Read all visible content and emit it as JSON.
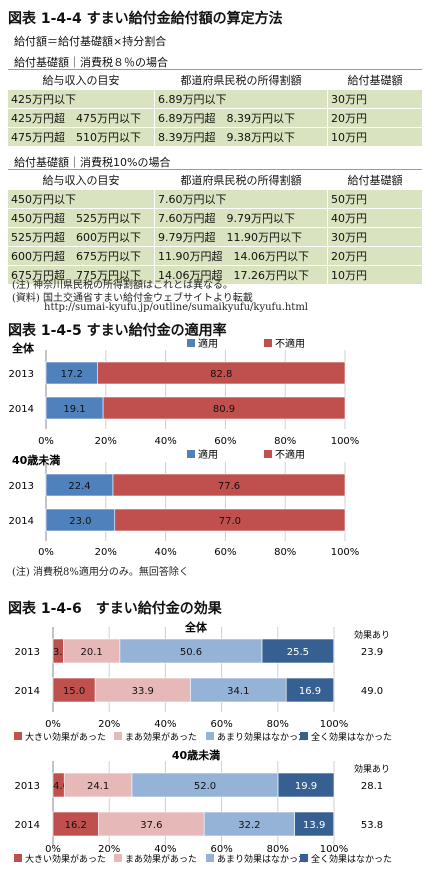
{
  "section1": {
    "title": "図表 1-4-4 すまい給付金給付額の算定方法",
    "formula": "給付額＝給付基礎額×持分割合",
    "table8": {
      "caption": "給付基礎額｜消費税８％の場合",
      "headers": [
        "給与収入の目安",
        "都道府県民税の所得割額",
        "給付基礎額"
      ],
      "rows": [
        [
          "425万円以下",
          "6.89万円以下",
          "30万円"
        ],
        [
          "425万円超　475万円以下",
          "6.89万円超　8.39万円以下",
          "20万円"
        ],
        [
          "475万円超　510万円以下",
          "8.39万円超　9.38万円以下",
          "10万円"
        ]
      ]
    },
    "table10": {
      "caption": "給付基礎額｜消費税10%の場合",
      "headers": [
        "給与収入の目安",
        "都道府県民税の所得割額",
        "給付基礎額"
      ],
      "rows": [
        [
          "450万円以下",
          "7.60万円以下",
          "50万円"
        ],
        [
          "450万円超　525万円以下",
          "7.60万円超　9.79万円以下",
          "40万円"
        ],
        [
          "525万円超　600万円以下",
          "9.79万円超　11.90万円以下",
          "30万円"
        ],
        [
          "600万円超　675万円以下",
          "11.90万円超　14.06万円以下",
          "20万円"
        ],
        [
          "675万円超　775万円以下",
          "14.06万円超　17.26万円以下",
          "10万円"
        ]
      ]
    },
    "notes": [
      "(注) 神奈川県民税の所得割額はこれとは異なる。",
      "(資料) 国土交通省すまい給付金ウェブサイトより転載",
      "http://sumai-kyufu.jp/outline/sumaikyufu/kyufu.html"
    ]
  },
  "section2": {
    "title": "図表 1-4-5 すまい給付金の適用率",
    "note": "(注) 消費税8%適用分のみ。無回答除く"
  },
  "section3": {
    "title": "図表 1-4-6　すまい給付金の効果"
  },
  "chart_data": [
    {
      "type": "bar",
      "orientation": "horizontal",
      "stacked": "percent",
      "title": "全体",
      "categories": [
        "2013",
        "2014"
      ],
      "series": [
        {
          "name": "適用",
          "color": "#4f81bd",
          "values": [
            17.2,
            19.1
          ]
        },
        {
          "name": "不適用",
          "color": "#c0504d",
          "values": [
            82.8,
            80.9
          ]
        }
      ],
      "xlim": [
        0,
        100
      ],
      "ticks": [
        "0%",
        "20%",
        "40%",
        "60%",
        "80%",
        "100%"
      ],
      "legend": "top"
    },
    {
      "type": "bar",
      "orientation": "horizontal",
      "stacked": "percent",
      "title": "40歳未満",
      "categories": [
        "2013",
        "2014"
      ],
      "series": [
        {
          "name": "適用",
          "color": "#4f81bd",
          "values": [
            22.4,
            23.0
          ]
        },
        {
          "name": "不適用",
          "color": "#c0504d",
          "values": [
            77.6,
            77.0
          ]
        }
      ],
      "xlim": [
        0,
        100
      ],
      "ticks": [
        "0%",
        "20%",
        "40%",
        "60%",
        "80%",
        "100%"
      ],
      "legend": "top"
    },
    {
      "type": "bar",
      "orientation": "horizontal",
      "stacked": "percent",
      "title": "全体",
      "categories": [
        "2013",
        "2014"
      ],
      "series": [
        {
          "name": "大きい効果があった",
          "color": "#c0504d",
          "values": [
            3.7,
            15.0
          ]
        },
        {
          "name": "まあ効果があった",
          "color": "#e6b9b8",
          "values": [
            20.1,
            33.9
          ]
        },
        {
          "name": "あまり効果はなかった",
          "color": "#95b3d7",
          "values": [
            50.6,
            34.1
          ]
        },
        {
          "name": "全く効果はなかった",
          "color": "#366092",
          "values": [
            25.5,
            16.9
          ]
        }
      ],
      "extra_label": "効果あり",
      "extra_values": [
        "23.9",
        "49.0"
      ],
      "xlim": [
        0,
        100
      ],
      "ticks": [
        "0%",
        "20%",
        "40%",
        "60%",
        "80%",
        "100%"
      ],
      "legend": "bottom"
    },
    {
      "type": "bar",
      "orientation": "horizontal",
      "stacked": "percent",
      "title": "40歳未満",
      "categories": [
        "2013",
        "2014"
      ],
      "series": [
        {
          "name": "大きい効果があった",
          "color": "#c0504d",
          "values": [
            4.0,
            16.2
          ]
        },
        {
          "name": "まあ効果があった",
          "color": "#e6b9b8",
          "values": [
            24.1,
            37.6
          ]
        },
        {
          "name": "あまり効果はなかった",
          "color": "#95b3d7",
          "values": [
            52.0,
            32.2
          ]
        },
        {
          "name": "全く効果はなかった",
          "color": "#366092",
          "values": [
            19.9,
            13.9
          ]
        }
      ],
      "extra_label": "効果あり",
      "extra_values": [
        "28.1",
        "53.8"
      ],
      "xlim": [
        0,
        100
      ],
      "ticks": [
        "0%",
        "20%",
        "40%",
        "60%",
        "80%",
        "100%"
      ],
      "legend": "bottom"
    }
  ]
}
